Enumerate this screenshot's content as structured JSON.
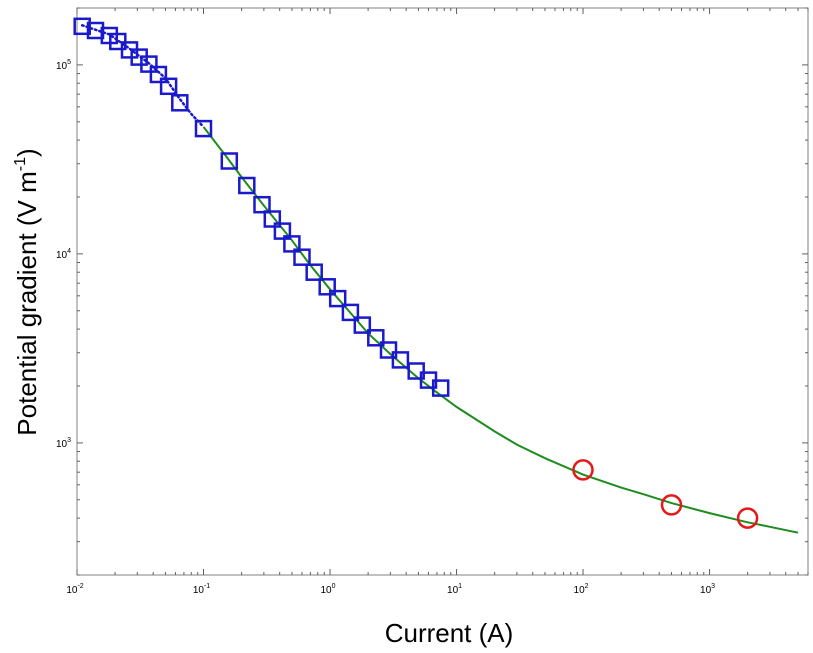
{
  "chart_data": {
    "type": "scatter",
    "xlabel": "Current (A)",
    "ylabel": "Potential gradient (V m",
    "ylabel_sup": "-1",
    "ylabel_close": ")",
    "x_scale": "log",
    "y_scale": "log",
    "xlim": [
      0.01,
      6000
    ],
    "ylim": [
      200,
      200000
    ],
    "grid": false,
    "x_ticks": [
      {
        "value": 0.01,
        "base": "10",
        "exp": "-2"
      },
      {
        "value": 0.1,
        "base": "10",
        "exp": "-1"
      },
      {
        "value": 1,
        "base": "10",
        "exp": "0"
      },
      {
        "value": 10,
        "base": "10",
        "exp": "1"
      },
      {
        "value": 100,
        "base": "10",
        "exp": "2"
      },
      {
        "value": 1000,
        "base": "10",
        "exp": "3"
      }
    ],
    "y_ticks": [
      {
        "value": 1000,
        "base": "10",
        "exp": "3"
      },
      {
        "value": 10000,
        "base": "10",
        "exp": "4"
      },
      {
        "value": 100000,
        "base": "10",
        "exp": "5"
      }
    ],
    "series": [
      {
        "marker": "square",
        "color": "#1a1acc",
        "points": [
          [
            0.011,
            160000
          ],
          [
            0.014,
            152000
          ],
          [
            0.018,
            143000
          ],
          [
            0.021,
            133000
          ],
          [
            0.026,
            120000
          ],
          [
            0.031,
            110000
          ],
          [
            0.037,
            101000
          ],
          [
            0.044,
            89000
          ],
          [
            0.053,
            77000
          ],
          [
            0.065,
            63000
          ],
          [
            0.1,
            46000
          ],
          [
            0.16,
            31000
          ],
          [
            0.22,
            23000
          ],
          [
            0.29,
            18200
          ],
          [
            0.35,
            15300
          ],
          [
            0.42,
            13200
          ],
          [
            0.5,
            11300
          ],
          [
            0.6,
            9600
          ],
          [
            0.75,
            8000
          ],
          [
            0.95,
            6700
          ],
          [
            1.15,
            5800
          ],
          [
            1.45,
            4900
          ],
          [
            1.8,
            4200
          ],
          [
            2.3,
            3600
          ],
          [
            2.9,
            3100
          ],
          [
            3.6,
            2750
          ],
          [
            4.8,
            2400
          ],
          [
            6.0,
            2150
          ],
          [
            7.5,
            1950
          ]
        ]
      },
      {
        "marker": "circle",
        "color": "#e61919",
        "points": [
          [
            100,
            720
          ],
          [
            500,
            470
          ],
          [
            2000,
            400
          ]
        ]
      },
      {
        "marker": "line",
        "color": "#1e8c1e",
        "points": [
          [
            0.1,
            47000
          ],
          [
            0.15,
            33000
          ],
          [
            0.2,
            25500
          ],
          [
            0.3,
            18000
          ],
          [
            0.5,
            11800
          ],
          [
            0.7,
            8700
          ],
          [
            1,
            6500
          ],
          [
            1.5,
            4750
          ],
          [
            2,
            3800
          ],
          [
            3,
            2950
          ],
          [
            5,
            2200
          ],
          [
            7,
            1850
          ],
          [
            10,
            1550
          ],
          [
            20,
            1150
          ],
          [
            30,
            980
          ],
          [
            50,
            830
          ],
          [
            100,
            680
          ],
          [
            200,
            580
          ],
          [
            300,
            535
          ],
          [
            500,
            480
          ],
          [
            1000,
            425
          ],
          [
            2000,
            380
          ],
          [
            3000,
            360
          ],
          [
            5000,
            335
          ]
        ]
      },
      {
        "marker": "dotted-line",
        "color": "#1a1acc",
        "points": [
          [
            0.011,
            162000
          ],
          [
            0.018,
            145000
          ],
          [
            0.026,
            122000
          ],
          [
            0.037,
            102000
          ],
          [
            0.05,
            85000
          ],
          [
            0.065,
            66000
          ],
          [
            0.08,
            55000
          ],
          [
            0.1,
            47000
          ]
        ]
      }
    ]
  }
}
